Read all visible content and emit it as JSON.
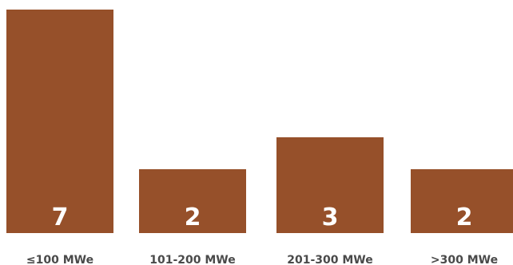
{
  "chart_data": {
    "type": "bar",
    "categories": [
      "≤100 MWe",
      "101-200 MWe",
      "201-300 MWe",
      ">300 MWe"
    ],
    "values": [
      7,
      2,
      3,
      2
    ],
    "title": "",
    "xlabel": "",
    "ylabel": "",
    "ylim": [
      0,
      7
    ],
    "grid": false,
    "legend": "none",
    "bar_color": "#96502A",
    "value_label_color": "#FFFFFF",
    "tick_label_color": "#4A4A4A"
  }
}
